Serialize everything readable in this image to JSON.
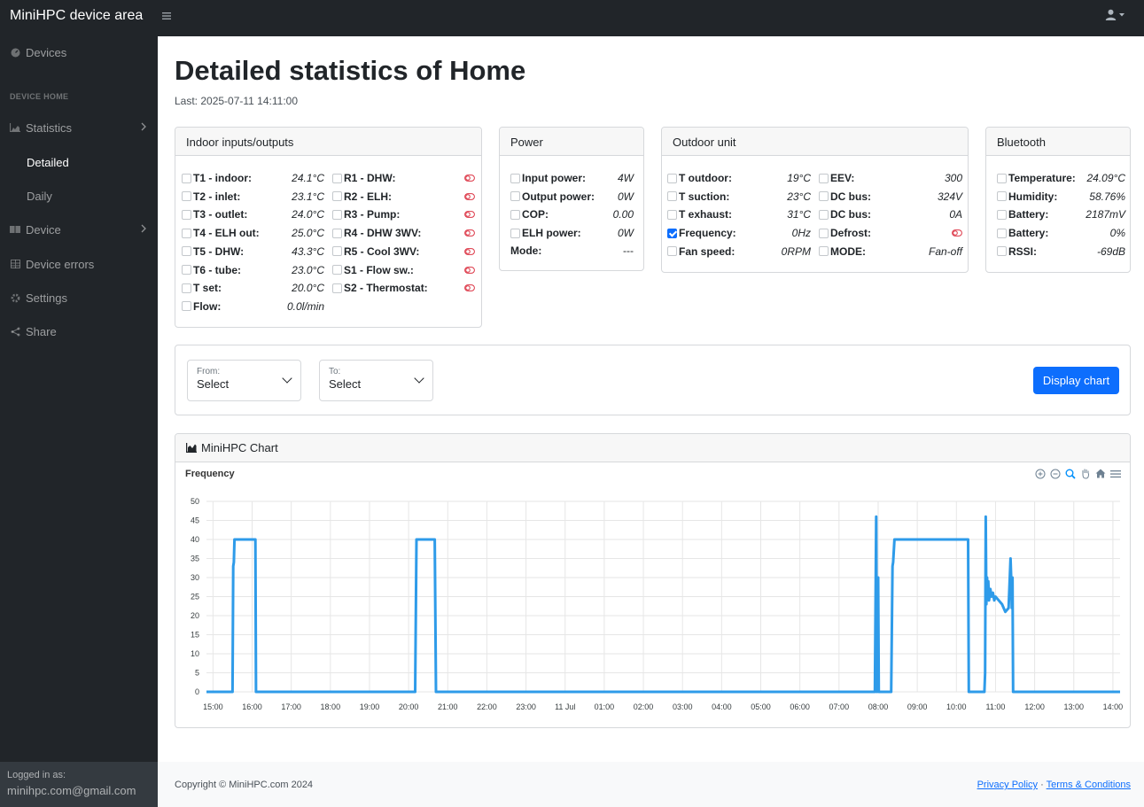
{
  "app": {
    "brand": "MiniHPC device area"
  },
  "sidebar": {
    "devices": "Devices",
    "section_heading": "DEVICE HOME",
    "statistics": "Statistics",
    "detailed": "Detailed",
    "daily": "Daily",
    "device": "Device",
    "device_errors": "Device errors",
    "settings": "Settings",
    "share": "Share",
    "logged_in_label": "Logged in as:",
    "email": "minihpc.com@gmail.com"
  },
  "page": {
    "title": "Detailed statistics of Home",
    "last": "Last: 2025-07-11 14:11:00"
  },
  "indoor": {
    "title": "Indoor inputs/outputs",
    "left": [
      {
        "label": "T1 - indoor:",
        "value": "24.1°C"
      },
      {
        "label": "T2 - inlet:",
        "value": "23.1°C"
      },
      {
        "label": "T3 - outlet:",
        "value": "24.0°C"
      },
      {
        "label": "T4 - ELH out:",
        "value": "25.0°C"
      },
      {
        "label": "T5 - DHW:",
        "value": "43.3°C"
      },
      {
        "label": "T6 - tube:",
        "value": "23.0°C"
      },
      {
        "label": "T set:",
        "value": "20.0°C"
      },
      {
        "label": "Flow:",
        "value": "0.0l/min"
      }
    ],
    "right": [
      {
        "label": "R1 - DHW:"
      },
      {
        "label": "R2 - ELH:"
      },
      {
        "label": "R3 - Pump:"
      },
      {
        "label": "R4 - DHW 3WV:"
      },
      {
        "label": "R5 - Cool 3WV:"
      },
      {
        "label": "S1 - Flow sw.:"
      },
      {
        "label": "S2 - Thermostat:"
      }
    ]
  },
  "power": {
    "title": "Power",
    "rows": [
      {
        "label": "Input power:",
        "value": "4W"
      },
      {
        "label": "Output power:",
        "value": "0W"
      },
      {
        "label": "COP:",
        "value": "0.00"
      },
      {
        "label": "ELH power:",
        "value": "0W"
      }
    ],
    "mode_label": "Mode:",
    "mode_value": "---"
  },
  "outdoor": {
    "title": "Outdoor unit",
    "left": [
      {
        "label": "T outdoor:",
        "value": "19°C"
      },
      {
        "label": "T suction:",
        "value": "23°C"
      },
      {
        "label": "T exhaust:",
        "value": "31°C"
      },
      {
        "label": "Frequency:",
        "value": "0Hz"
      },
      {
        "label": "Fan speed:",
        "value": "0RPM"
      }
    ],
    "right": [
      {
        "label": "EEV:",
        "value": "300"
      },
      {
        "label": "DC bus:",
        "value": "324V"
      },
      {
        "label": "DC bus:",
        "value": "0A"
      },
      {
        "label": "Defrost:",
        "value": ""
      },
      {
        "label": "MODE:",
        "value": "Fan-off"
      }
    ]
  },
  "bluetooth": {
    "title": "Bluetooth",
    "rows": [
      {
        "label": "Temperature:",
        "value": "24.09°C"
      },
      {
        "label": "Humidity:",
        "value": "58.76%"
      },
      {
        "label": "Battery:",
        "value": "2187mV"
      },
      {
        "label": "Battery:",
        "value": "0%"
      },
      {
        "label": "RSSI:",
        "value": "-69dB"
      }
    ]
  },
  "range": {
    "from_label": "From:",
    "from_value": "Select",
    "to_label": "To:",
    "to_value": "Select",
    "button": "Display chart"
  },
  "chart_card": {
    "title": "MiniHPC Chart"
  },
  "footer": {
    "copyright": "Copyright © MiniHPC.com 2024",
    "privacy": "Privacy Policy",
    "sep": " · ",
    "terms": "Terms & Conditions"
  },
  "colors": {
    "accent": "#0d6efd",
    "series": "#2e9be9",
    "toggle": "#dc3545"
  },
  "chart_data": {
    "type": "line",
    "title": "Frequency",
    "xlabel": "",
    "ylabel": "",
    "ylim": [
      0,
      50
    ],
    "yticks": [
      0,
      5,
      10,
      15,
      20,
      25,
      30,
      35,
      40,
      45,
      50
    ],
    "x_start": "14:50",
    "x_end": "14:11",
    "xticks": [
      "15:00",
      "16:00",
      "17:00",
      "18:00",
      "19:00",
      "20:00",
      "21:00",
      "22:00",
      "23:00",
      "11 Jul",
      "01:00",
      "02:00",
      "03:00",
      "04:00",
      "05:00",
      "06:00",
      "07:00",
      "08:00",
      "09:00",
      "10:00",
      "11:00",
      "12:00",
      "13:00",
      "14:00"
    ],
    "grid": true,
    "series": [
      {
        "name": "Frequency",
        "points": [
          [
            "14:50",
            0
          ],
          [
            "15:30",
            0
          ],
          [
            "15:31",
            33
          ],
          [
            "15:32",
            34
          ],
          [
            "15:33",
            40
          ],
          [
            "16:05",
            40
          ],
          [
            "16:06",
            0
          ],
          [
            "20:10",
            0
          ],
          [
            "20:12",
            40
          ],
          [
            "20:40",
            40
          ],
          [
            "20:42",
            0
          ],
          [
            "07:55",
            0
          ],
          [
            "07:57",
            46
          ],
          [
            "07:58",
            0
          ],
          [
            "08:00",
            30
          ],
          [
            "08:01",
            0
          ],
          [
            "08:20",
            0
          ],
          [
            "08:22",
            33
          ],
          [
            "08:23",
            34
          ],
          [
            "08:25",
            40
          ],
          [
            "10:18",
            40
          ],
          [
            "10:19",
            0
          ],
          [
            "10:43",
            0
          ],
          [
            "10:44",
            5
          ],
          [
            "10:45",
            46
          ],
          [
            "10:46",
            23
          ],
          [
            "10:47",
            30
          ],
          [
            "10:48",
            25
          ],
          [
            "10:49",
            29
          ],
          [
            "10:50",
            24
          ],
          [
            "10:52",
            27
          ],
          [
            "10:54",
            25
          ],
          [
            "10:56",
            26
          ],
          [
            "10:58",
            24
          ],
          [
            "11:00",
            25
          ],
          [
            "11:05",
            24
          ],
          [
            "11:10",
            23
          ],
          [
            "11:15",
            21
          ],
          [
            "11:20",
            22
          ],
          [
            "11:23",
            35
          ],
          [
            "11:24",
            30
          ],
          [
            "11:25",
            22
          ],
          [
            "11:26",
            30
          ],
          [
            "11:27",
            0
          ],
          [
            "14:11",
            0
          ]
        ]
      }
    ]
  }
}
